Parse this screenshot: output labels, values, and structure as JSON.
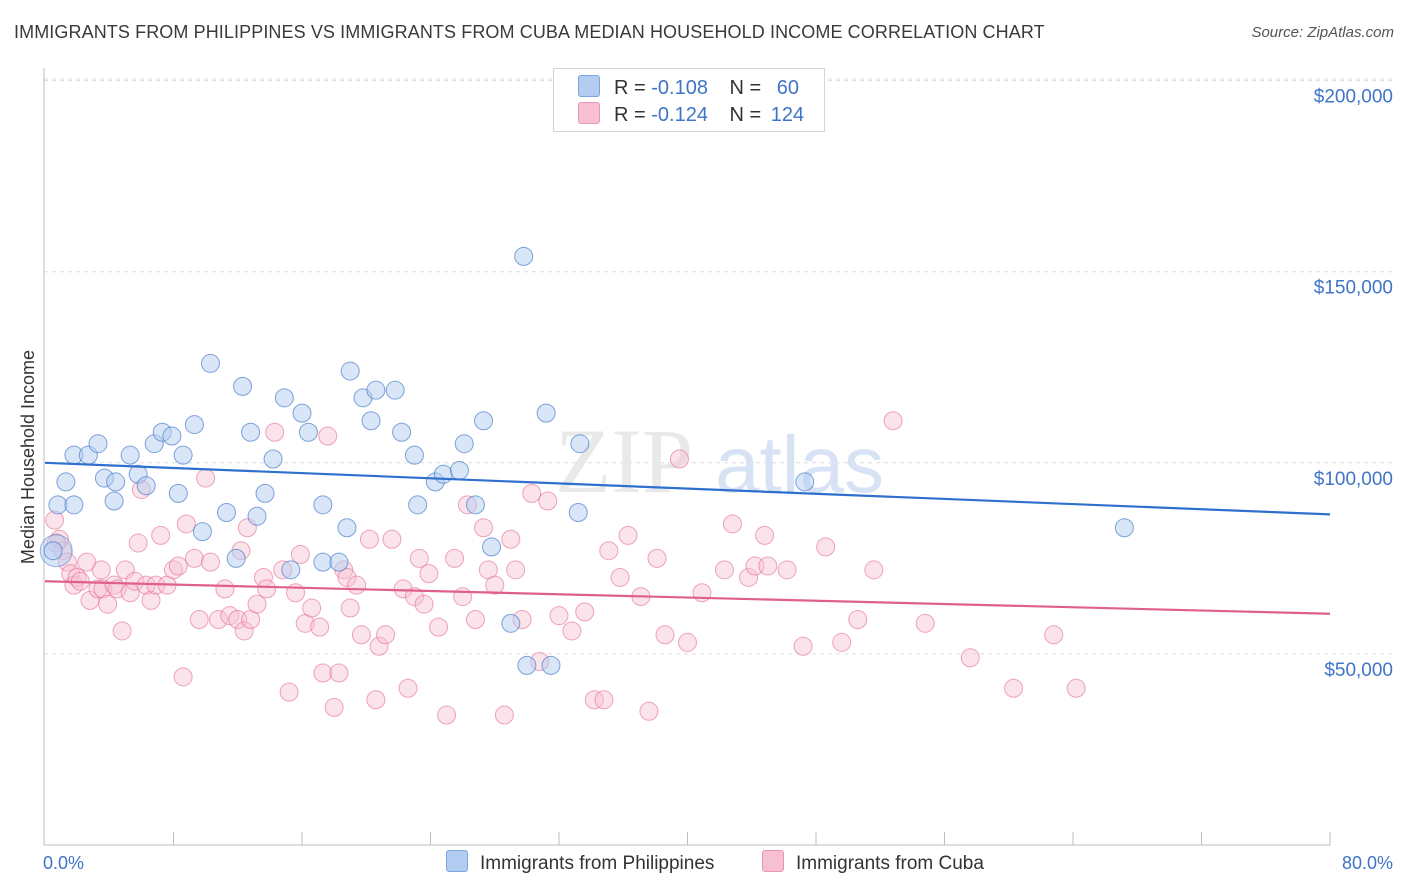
{
  "header": {
    "title": "IMMIGRANTS FROM PHILIPPINES VS IMMIGRANTS FROM CUBA MEDIAN HOUSEHOLD INCOME CORRELATION CHART",
    "source": "Source: ZipAtlas.com"
  },
  "legend": {
    "philippines": {
      "r_label": "R =",
      "r_value": "-0.108",
      "n_label": "N =",
      "n_value": "60"
    },
    "cuba": {
      "r_label": "R =",
      "r_value": "-0.124",
      "n_label": "N =",
      "n_value": "124"
    }
  },
  "watermark": {
    "zip": "ZIP",
    "atlas": "atlas"
  },
  "colors": {
    "blue": "#3f74c8",
    "blue_fill": "#b3cdf2",
    "blue_line": "#2f6fce",
    "pink": "#e46a94",
    "pink_fill": "#f6c0d1",
    "pink_line": "#e0608c"
  },
  "chart_data": {
    "type": "scatter",
    "title": "IMMIGRANTS FROM PHILIPPINES VS IMMIGRANTS FROM CUBA MEDIAN HOUSEHOLD INCOME CORRELATION CHART",
    "xlabel": "",
    "ylabel": "Median Household Income",
    "xlim": [
      0,
      80
    ],
    "ylim": [
      0,
      210000
    ],
    "x_tick_labels": [
      "0.0%",
      "80.0%"
    ],
    "y_ticks": [
      50000,
      100000,
      150000,
      200000
    ],
    "y_tick_labels": [
      "$50,000",
      "$100,000",
      "$150,000",
      "$200,000"
    ],
    "grid": true,
    "series": [
      {
        "name": "Immigrants from Philippines",
        "color": "#3f74c8",
        "trend": {
          "x": [
            0,
            80
          ],
          "y": [
            100000,
            86500
          ]
        },
        "points": [
          [
            0.5,
            77000
          ],
          [
            0.8,
            89000
          ],
          [
            1.3,
            95000
          ],
          [
            1.8,
            89000
          ],
          [
            1.8,
            102000
          ],
          [
            2.7,
            102000
          ],
          [
            3.3,
            105000
          ],
          [
            3.7,
            96000
          ],
          [
            4.3,
            90000
          ],
          [
            4.4,
            95000
          ],
          [
            5.3,
            102000
          ],
          [
            5.8,
            97000
          ],
          [
            6.3,
            94000
          ],
          [
            6.8,
            105000
          ],
          [
            7.3,
            108000
          ],
          [
            7.9,
            107000
          ],
          [
            8.3,
            92000
          ],
          [
            8.6,
            102000
          ],
          [
            9.3,
            110000
          ],
          [
            9.8,
            82000
          ],
          [
            10.3,
            126000
          ],
          [
            11.3,
            87000
          ],
          [
            11.9,
            75000
          ],
          [
            12.3,
            120000
          ],
          [
            12.8,
            108000
          ],
          [
            13.2,
            86000
          ],
          [
            13.7,
            92000
          ],
          [
            14.2,
            101000
          ],
          [
            14.9,
            117000
          ],
          [
            15.3,
            72000
          ],
          [
            16.0,
            113000
          ],
          [
            16.4,
            108000
          ],
          [
            17.3,
            89000
          ],
          [
            17.3,
            74000
          ],
          [
            18.3,
            74000
          ],
          [
            18.8,
            83000
          ],
          [
            19.0,
            124000
          ],
          [
            19.8,
            117000
          ],
          [
            20.3,
            111000
          ],
          [
            20.6,
            119000
          ],
          [
            21.8,
            119000
          ],
          [
            22.2,
            108000
          ],
          [
            23.0,
            102000
          ],
          [
            23.2,
            89000
          ],
          [
            24.3,
            95000
          ],
          [
            24.8,
            97000
          ],
          [
            25.8,
            98000
          ],
          [
            26.1,
            105000
          ],
          [
            26.8,
            89000
          ],
          [
            27.3,
            111000
          ],
          [
            27.8,
            78000
          ],
          [
            29.0,
            58000
          ],
          [
            29.8,
            154000
          ],
          [
            30.0,
            47000
          ],
          [
            31.2,
            113000
          ],
          [
            31.5,
            47000
          ],
          [
            33.2,
            87000
          ],
          [
            33.3,
            105000
          ],
          [
            47.3,
            95000
          ],
          [
            67.2,
            83000
          ]
        ],
        "large_point": [
          0.7,
          77000
        ]
      },
      {
        "name": "Immigrants from Cuba",
        "color": "#e46a94",
        "trend": {
          "x": [
            0,
            80
          ],
          "y": [
            69000,
            60500
          ]
        },
        "points": [
          [
            0.6,
            85000
          ],
          [
            0.9,
            80000
          ],
          [
            1.1,
            77000
          ],
          [
            1.4,
            74000
          ],
          [
            1.6,
            71000
          ],
          [
            1.8,
            68000
          ],
          [
            2.0,
            70000
          ],
          [
            2.2,
            69000
          ],
          [
            2.6,
            74000
          ],
          [
            2.8,
            64000
          ],
          [
            3.3,
            67000
          ],
          [
            3.5,
            72000
          ],
          [
            3.6,
            67000
          ],
          [
            3.9,
            63000
          ],
          [
            4.3,
            68000
          ],
          [
            4.5,
            67000
          ],
          [
            4.8,
            56000
          ],
          [
            5.0,
            72000
          ],
          [
            5.3,
            66000
          ],
          [
            5.6,
            69000
          ],
          [
            5.8,
            79000
          ],
          [
            6.0,
            93000
          ],
          [
            6.3,
            68000
          ],
          [
            6.6,
            64000
          ],
          [
            6.9,
            68000
          ],
          [
            7.2,
            81000
          ],
          [
            7.6,
            68000
          ],
          [
            8.0,
            72000
          ],
          [
            8.3,
            73000
          ],
          [
            8.8,
            84000
          ],
          [
            8.6,
            44000
          ],
          [
            9.3,
            75000
          ],
          [
            9.6,
            59000
          ],
          [
            10.0,
            96000
          ],
          [
            10.3,
            74000
          ],
          [
            10.8,
            59000
          ],
          [
            11.2,
            67000
          ],
          [
            11.5,
            60000
          ],
          [
            12.0,
            59000
          ],
          [
            12.2,
            77000
          ],
          [
            12.4,
            56000
          ],
          [
            12.6,
            83000
          ],
          [
            12.8,
            59000
          ],
          [
            13.2,
            63000
          ],
          [
            13.6,
            70000
          ],
          [
            13.8,
            67000
          ],
          [
            14.3,
            108000
          ],
          [
            14.8,
            72000
          ],
          [
            15.2,
            40000
          ],
          [
            15.6,
            66000
          ],
          [
            15.9,
            76000
          ],
          [
            16.2,
            58000
          ],
          [
            16.6,
            62000
          ],
          [
            17.1,
            57000
          ],
          [
            17.3,
            45000
          ],
          [
            17.6,
            107000
          ],
          [
            18.0,
            36000
          ],
          [
            18.3,
            45000
          ],
          [
            18.6,
            72000
          ],
          [
            18.8,
            70000
          ],
          [
            19.0,
            62000
          ],
          [
            19.4,
            68000
          ],
          [
            19.7,
            55000
          ],
          [
            20.2,
            80000
          ],
          [
            20.6,
            38000
          ],
          [
            20.8,
            52000
          ],
          [
            21.2,
            55000
          ],
          [
            21.6,
            80000
          ],
          [
            22.3,
            67000
          ],
          [
            22.6,
            41000
          ],
          [
            23.0,
            65000
          ],
          [
            23.3,
            75000
          ],
          [
            23.6,
            63000
          ],
          [
            23.9,
            71000
          ],
          [
            24.5,
            57000
          ],
          [
            25.0,
            34000
          ],
          [
            25.5,
            75000
          ],
          [
            26.0,
            65000
          ],
          [
            26.3,
            89000
          ],
          [
            26.8,
            59000
          ],
          [
            27.3,
            83000
          ],
          [
            27.6,
            72000
          ],
          [
            28.0,
            68000
          ],
          [
            28.6,
            34000
          ],
          [
            29.0,
            80000
          ],
          [
            29.3,
            72000
          ],
          [
            29.7,
            59000
          ],
          [
            30.3,
            92000
          ],
          [
            30.8,
            48000
          ],
          [
            31.3,
            90000
          ],
          [
            32.0,
            60000
          ],
          [
            32.8,
            56000
          ],
          [
            33.6,
            61000
          ],
          [
            34.2,
            38000
          ],
          [
            34.8,
            38000
          ],
          [
            35.1,
            77000
          ],
          [
            35.8,
            70000
          ],
          [
            36.3,
            81000
          ],
          [
            37.1,
            65000
          ],
          [
            37.6,
            35000
          ],
          [
            38.1,
            75000
          ],
          [
            38.6,
            55000
          ],
          [
            39.5,
            101000
          ],
          [
            40.0,
            53000
          ],
          [
            40.9,
            66000
          ],
          [
            42.3,
            72000
          ],
          [
            42.8,
            84000
          ],
          [
            43.8,
            70000
          ],
          [
            44.2,
            73000
          ],
          [
            44.8,
            81000
          ],
          [
            45.0,
            73000
          ],
          [
            46.2,
            72000
          ],
          [
            47.2,
            52000
          ],
          [
            48.6,
            78000
          ],
          [
            49.6,
            53000
          ],
          [
            50.6,
            59000
          ],
          [
            51.6,
            72000
          ],
          [
            52.8,
            111000
          ],
          [
            54.8,
            58000
          ],
          [
            57.6,
            49000
          ],
          [
            60.3,
            41000
          ],
          [
            62.8,
            55000
          ],
          [
            64.2,
            41000
          ],
          [
            0.7,
            79000
          ]
        ]
      }
    ],
    "legend_labels": [
      "Immigrants from Philippines",
      "Immigrants from Cuba"
    ]
  }
}
